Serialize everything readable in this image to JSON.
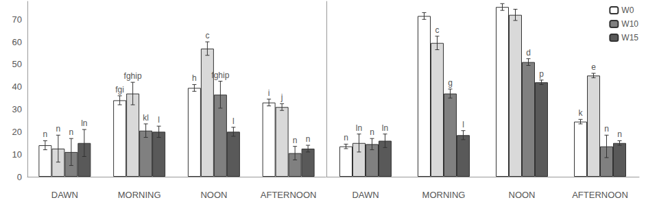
{
  "chart_data": [
    {
      "type": "bar",
      "categories": [
        "DAWN",
        "MORNING",
        "NOON",
        "AFTERNOON"
      ],
      "ylim": [
        0,
        78
      ],
      "yticks": [
        0,
        10,
        20,
        30,
        40,
        50,
        60,
        70
      ],
      "grid": false,
      "series": [
        {
          "color": "#ffffff",
          "values": [
            14,
            34,
            39.5,
            33
          ],
          "errors": [
            2,
            2,
            1.5,
            1.5
          ],
          "letters": [
            "n",
            "fgi",
            "h",
            "i"
          ]
        },
        {
          "color": "#d9d9d9",
          "values": [
            12.5,
            37,
            57,
            31
          ],
          "errors": [
            6,
            5,
            3,
            1.5
          ],
          "letters": [
            "n",
            "fghip",
            "c",
            "j"
          ]
        },
        {
          "color": "#808080",
          "values": [
            11,
            20.5,
            36.5,
            10.5
          ],
          "errors": [
            6,
            3,
            6,
            3
          ],
          "letters": [
            "n",
            "kl",
            "fghip",
            "n"
          ]
        },
        {
          "color": "#595959",
          "values": [
            15,
            20,
            20,
            12.5
          ],
          "errors": [
            6,
            2.5,
            2,
            1.5
          ],
          "letters": [
            "ln",
            "l",
            "l",
            "n"
          ]
        }
      ]
    },
    {
      "type": "bar",
      "categories": [
        "DAWN",
        "MORNING",
        "NOON",
        "AFTERNOON"
      ],
      "ylim": [
        0,
        78
      ],
      "grid": false,
      "tick_labels": "x",
      "legend": "top-right",
      "series": [
        {
          "name": "W0",
          "color": "#ffffff",
          "values": [
            13.5,
            71.5,
            75.5,
            24.5
          ],
          "errors": [
            1,
            1.5,
            1.5,
            1
          ],
          "letters": [
            "n",
            null,
            null,
            "k"
          ]
        },
        {
          "color": "#d9d9d9",
          "values": [
            15,
            59.5,
            72,
            45
          ],
          "errors": [
            4,
            3,
            2.5,
            1
          ],
          "letters": [
            "ln",
            "c",
            null,
            "e"
          ]
        },
        {
          "name": "W10",
          "color": "#808080",
          "values": [
            14.5,
            37,
            51,
            13.5
          ],
          "errors": [
            2.5,
            2,
            1.5,
            5
          ],
          "letters": [
            "n",
            "g",
            "d",
            "n"
          ]
        },
        {
          "name": "W15",
          "color": "#595959",
          "values": [
            16,
            18.5,
            42,
            15
          ],
          "errors": [
            3,
            2,
            1,
            1
          ],
          "letters": [
            "ln",
            "l",
            "p",
            "n"
          ]
        }
      ]
    }
  ]
}
